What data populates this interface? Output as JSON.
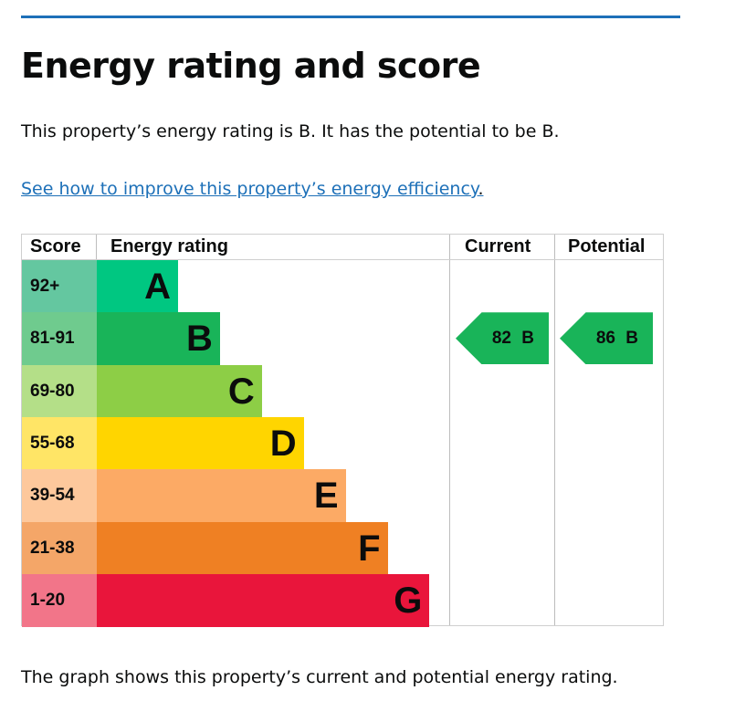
{
  "title": "Energy rating and score",
  "summary": "This property’s energy rating is B. It has the potential to be B.",
  "improve_link": "See how to improve this property’s energy efficiency",
  "improve_link_suffix": ".",
  "footer": "The graph shows this property’s current and potential energy rating.",
  "chart_data": {
    "type": "table",
    "headers": {
      "score": "Score",
      "rating": "Energy rating",
      "current": "Current",
      "potential": "Potential"
    },
    "bands": [
      {
        "letter": "A",
        "range": "92+",
        "color": "#00c781",
        "score_color": "#64c7a0"
      },
      {
        "letter": "B",
        "range": "81-91",
        "color": "#19b459",
        "score_color": "#6fcb8e"
      },
      {
        "letter": "C",
        "range": "69-80",
        "color": "#8dce46",
        "score_color": "#b4df88"
      },
      {
        "letter": "D",
        "range": "55-68",
        "color": "#ffd500",
        "score_color": "#ffe566"
      },
      {
        "letter": "E",
        "range": "39-54",
        "color": "#fcaa65",
        "score_color": "#fdc89c"
      },
      {
        "letter": "F",
        "range": "21-38",
        "color": "#ef8023",
        "score_color": "#f4a668"
      },
      {
        "letter": "G",
        "range": "1-20",
        "color": "#e9153b",
        "score_color": "#f27589"
      }
    ],
    "current": {
      "score": 82,
      "band": "B",
      "label": "82 B"
    },
    "potential": {
      "score": 86,
      "band": "B",
      "label": "86 B"
    }
  }
}
